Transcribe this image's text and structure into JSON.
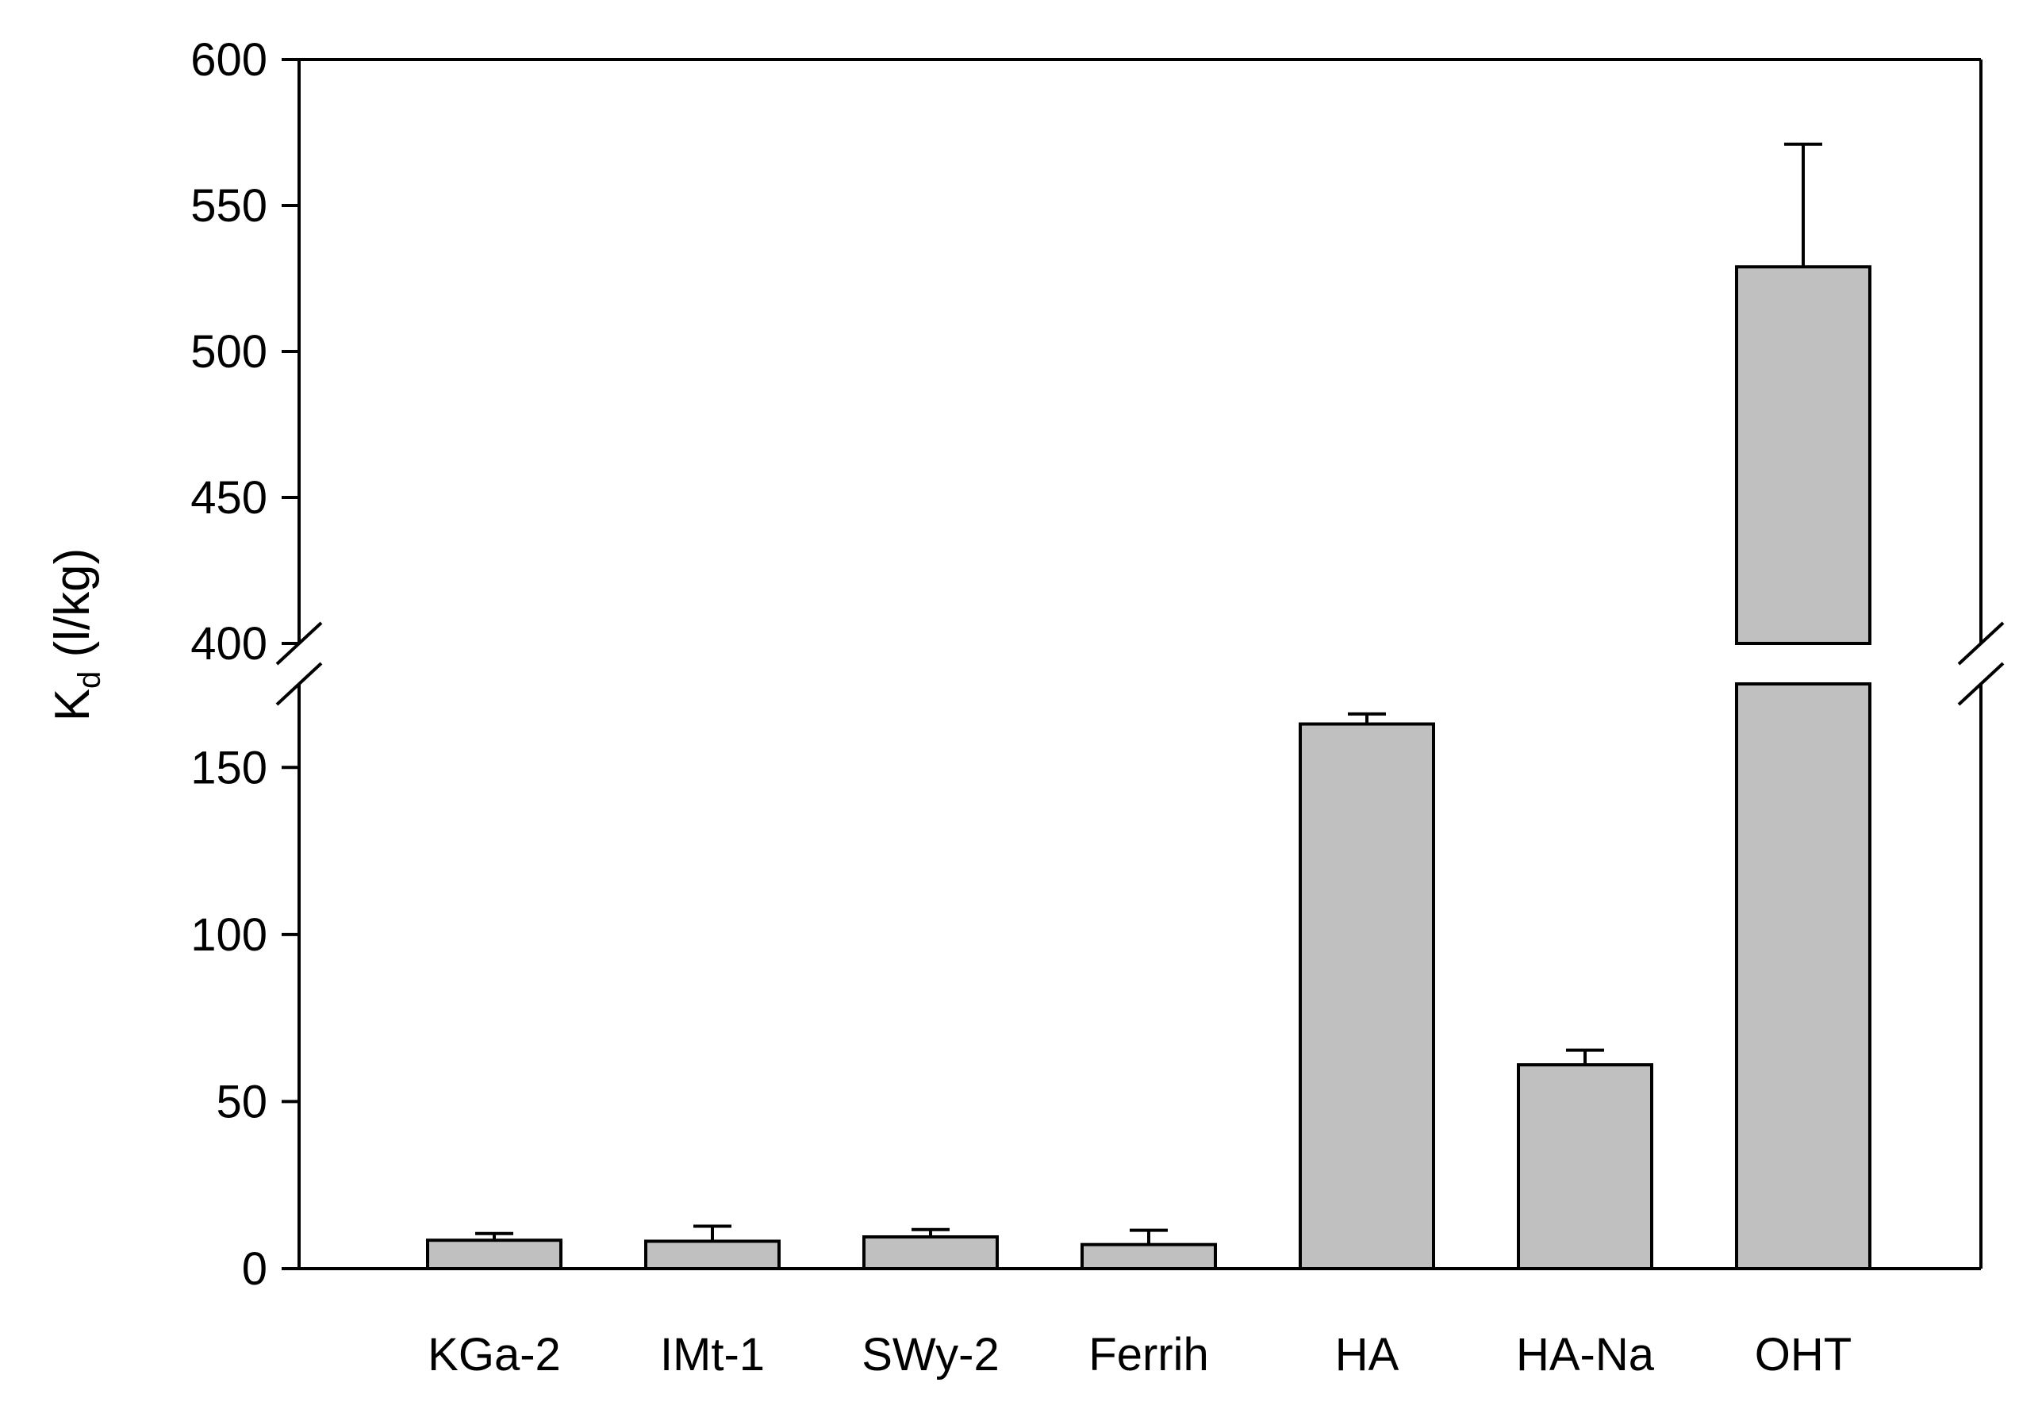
{
  "chart_data": {
    "type": "bar",
    "ylabel": {
      "main": "K",
      "subscript": "d",
      "unit": " (l/kg)"
    },
    "categories": [
      "KGa-2",
      "IMt-1",
      "SWy-2",
      "Ferrih",
      "HA",
      "HA-Na",
      "OHT"
    ],
    "values": [
      8.5,
      8.2,
      9.5,
      7.2,
      163,
      61,
      529
    ],
    "errors": [
      2.0,
      4.5,
      2.2,
      4.3,
      3.0,
      4.4,
      42
    ],
    "y_axis_broken": true,
    "y_segments": [
      {
        "range": [
          0,
          175
        ],
        "ticks": [
          0,
          50,
          100,
          150
        ]
      },
      {
        "range": [
          400,
          600
        ],
        "ticks": [
          400,
          450,
          500,
          550,
          600
        ]
      }
    ],
    "bar_color": "#c0c0c0",
    "edge_color": "#000000",
    "grid": false,
    "legend": "none"
  }
}
